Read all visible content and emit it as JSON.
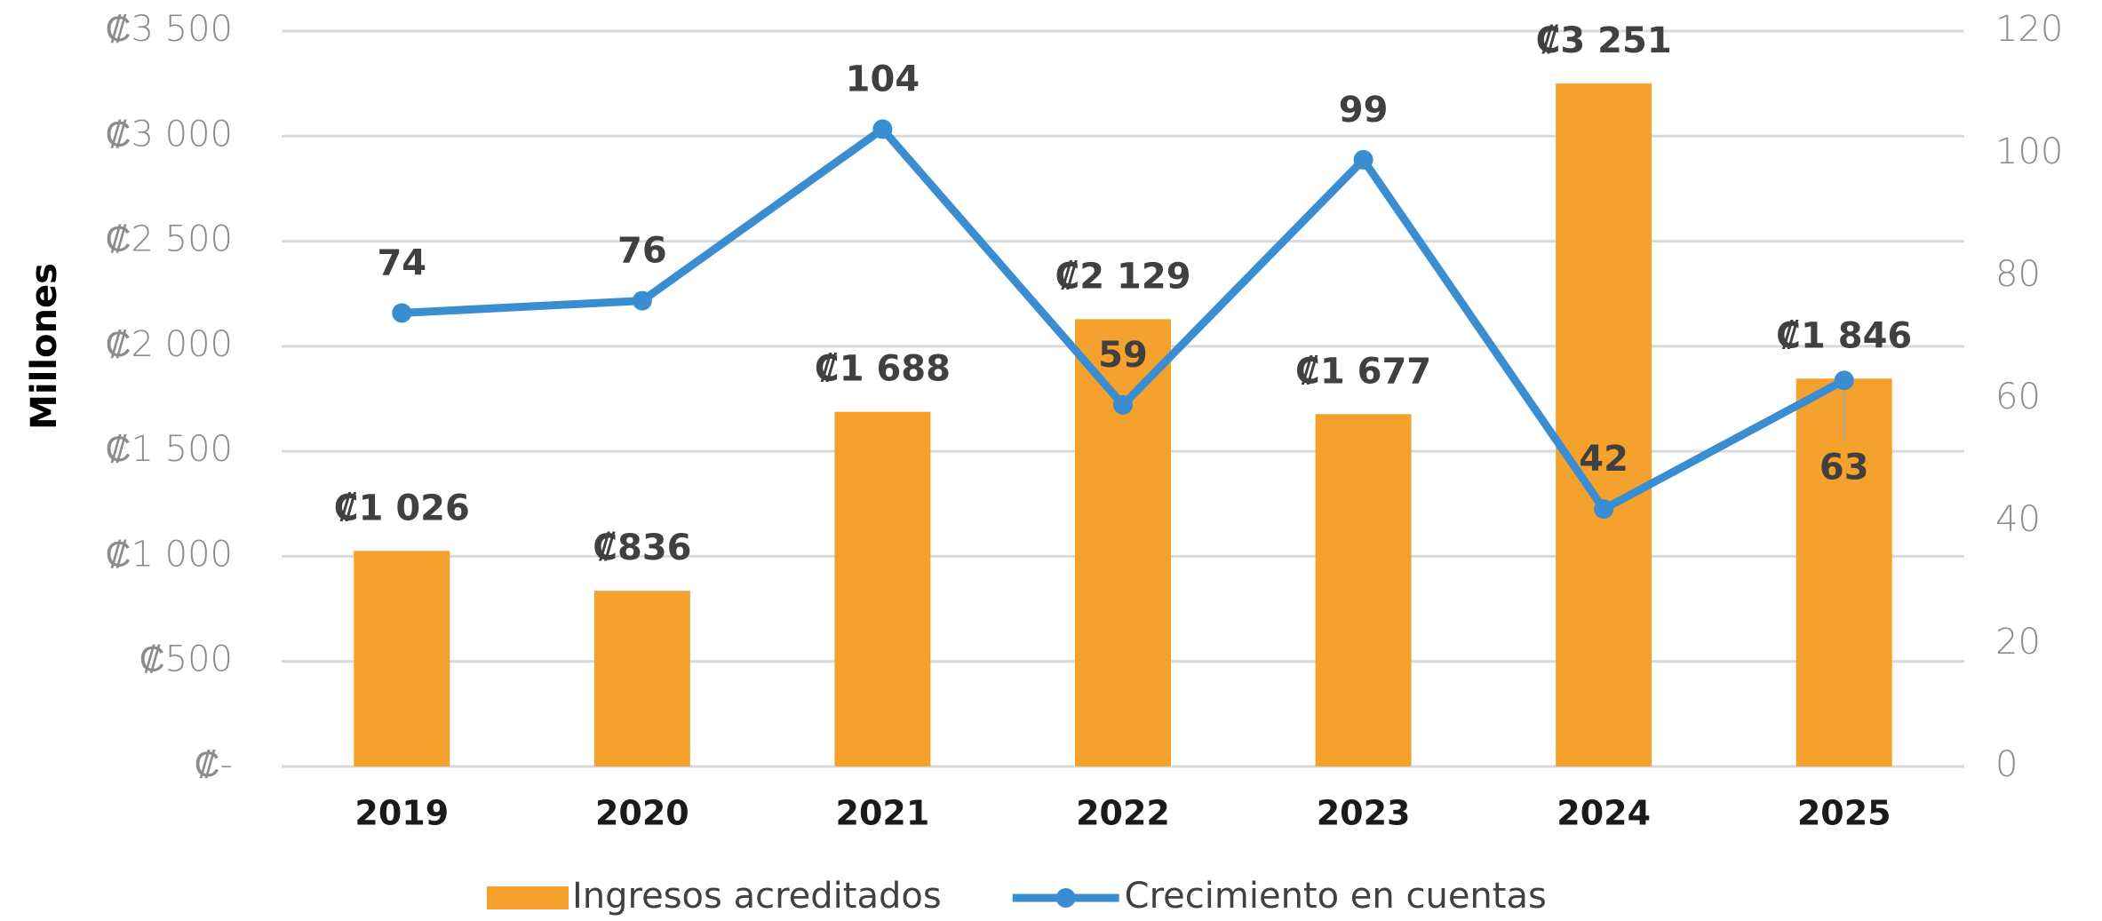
{
  "chart_data": {
    "type": "bar",
    "y_label": "Millones",
    "categories": [
      "2019",
      "2020",
      "2021",
      "2022",
      "2023",
      "2024",
      "2025"
    ],
    "series": [
      {
        "name": "Ingresos acreditados",
        "type": "bar",
        "color": "#F4A22D",
        "values": [
          1026,
          836,
          1688,
          2129,
          1677,
          3251,
          1846
        ],
        "value_labels": [
          "₡1 026",
          "₡836",
          "₡1 688",
          "₡2 129",
          "₡1 677",
          "₡3 251",
          "₡1 846"
        ]
      },
      {
        "name": "Crecimiento en cuentas",
        "type": "line",
        "axis": "y2",
        "color": "#3A8DD0",
        "values": [
          74,
          76,
          104,
          59,
          99,
          42,
          63
        ]
      }
    ],
    "ylim": [
      0,
      3500
    ],
    "yticks": [
      {
        "value": 0,
        "label": "₡-"
      },
      {
        "value": 500,
        "label": "₡500"
      },
      {
        "value": 1000,
        "label": "₡1 000"
      },
      {
        "value": 1500,
        "label": "₡1 500"
      },
      {
        "value": 2000,
        "label": "₡2 000"
      },
      {
        "value": 2500,
        "label": "₡2 500"
      },
      {
        "value": 3000,
        "label": "₡3 000"
      },
      {
        "value": 3500,
        "label": "₡3 500"
      }
    ],
    "y2lim": [
      0,
      120
    ],
    "y2ticks": [
      0,
      20,
      40,
      60,
      80,
      100,
      120
    ],
    "grid": true,
    "legend": "bottom"
  }
}
